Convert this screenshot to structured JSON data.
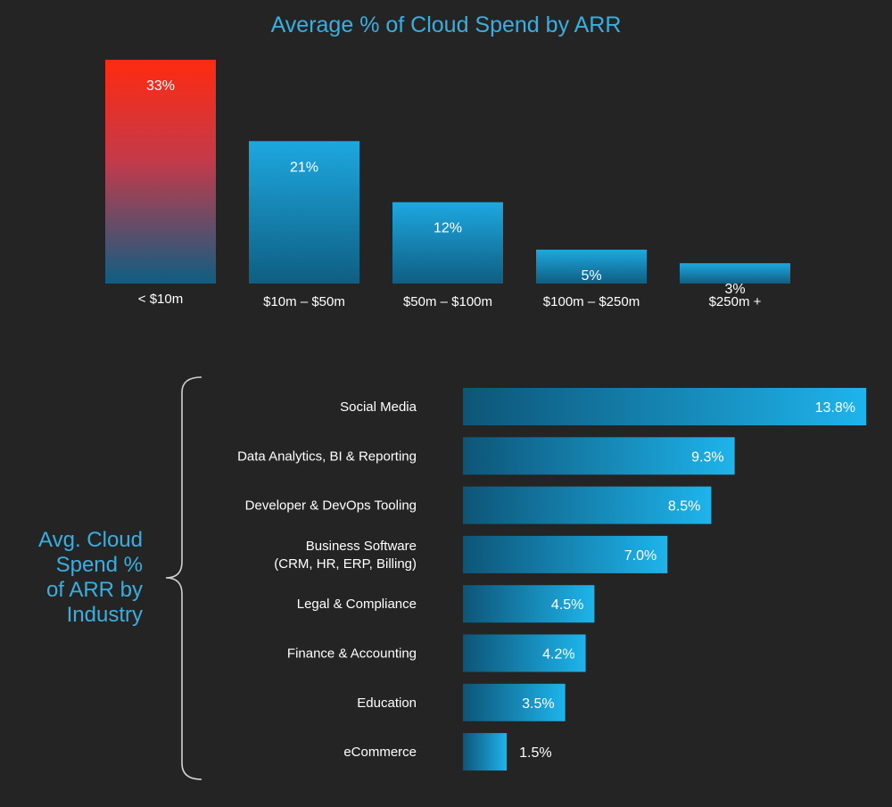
{
  "chart_data": [
    {
      "type": "bar",
      "title": "Average % of Cloud Spend by ARR",
      "categories": [
        "< $10m",
        "$10m – $50m",
        "$50m – $100m",
        "$100m – $250m",
        "$250m +"
      ],
      "values": [
        33,
        21,
        12,
        5,
        3
      ],
      "value_labels": [
        "33%",
        "21%",
        "12%",
        "5%",
        "3%"
      ],
      "unit": "%",
      "ylim": [
        0,
        33
      ],
      "highlight_index": 0,
      "colors": {
        "bar": "#1da8e0",
        "bar_dark": "#0f5e82",
        "highlight": "#ff2a10"
      }
    },
    {
      "type": "bar",
      "orientation": "horizontal",
      "title": "Avg. Cloud Spend % of ARR by Industry",
      "title_lines": [
        "Avg. Cloud",
        "Spend %",
        "of ARR by",
        "Industry"
      ],
      "categories": [
        [
          "Social Media"
        ],
        [
          "Data Analytics, BI & Reporting"
        ],
        [
          "Developer & DevOps Tooling"
        ],
        [
          "Business Software",
          "(CRM, HR, ERP, Billing)"
        ],
        [
          "Legal & Compliance"
        ],
        [
          "Finance & Accounting"
        ],
        [
          "Education"
        ],
        [
          "eCommerce"
        ]
      ],
      "values": [
        13.8,
        9.3,
        8.5,
        7.0,
        4.5,
        4.2,
        3.5,
        1.5
      ],
      "value_labels": [
        "13.8%",
        "9.3%",
        "8.5%",
        "7.0%",
        "4.5%",
        "4.2%",
        "3.5%",
        "1.5%"
      ],
      "unit": "%",
      "xlim": [
        0,
        13.8
      ],
      "colors": {
        "bar": "#1eb4ec",
        "bar_dark": "#0d5577"
      }
    }
  ]
}
